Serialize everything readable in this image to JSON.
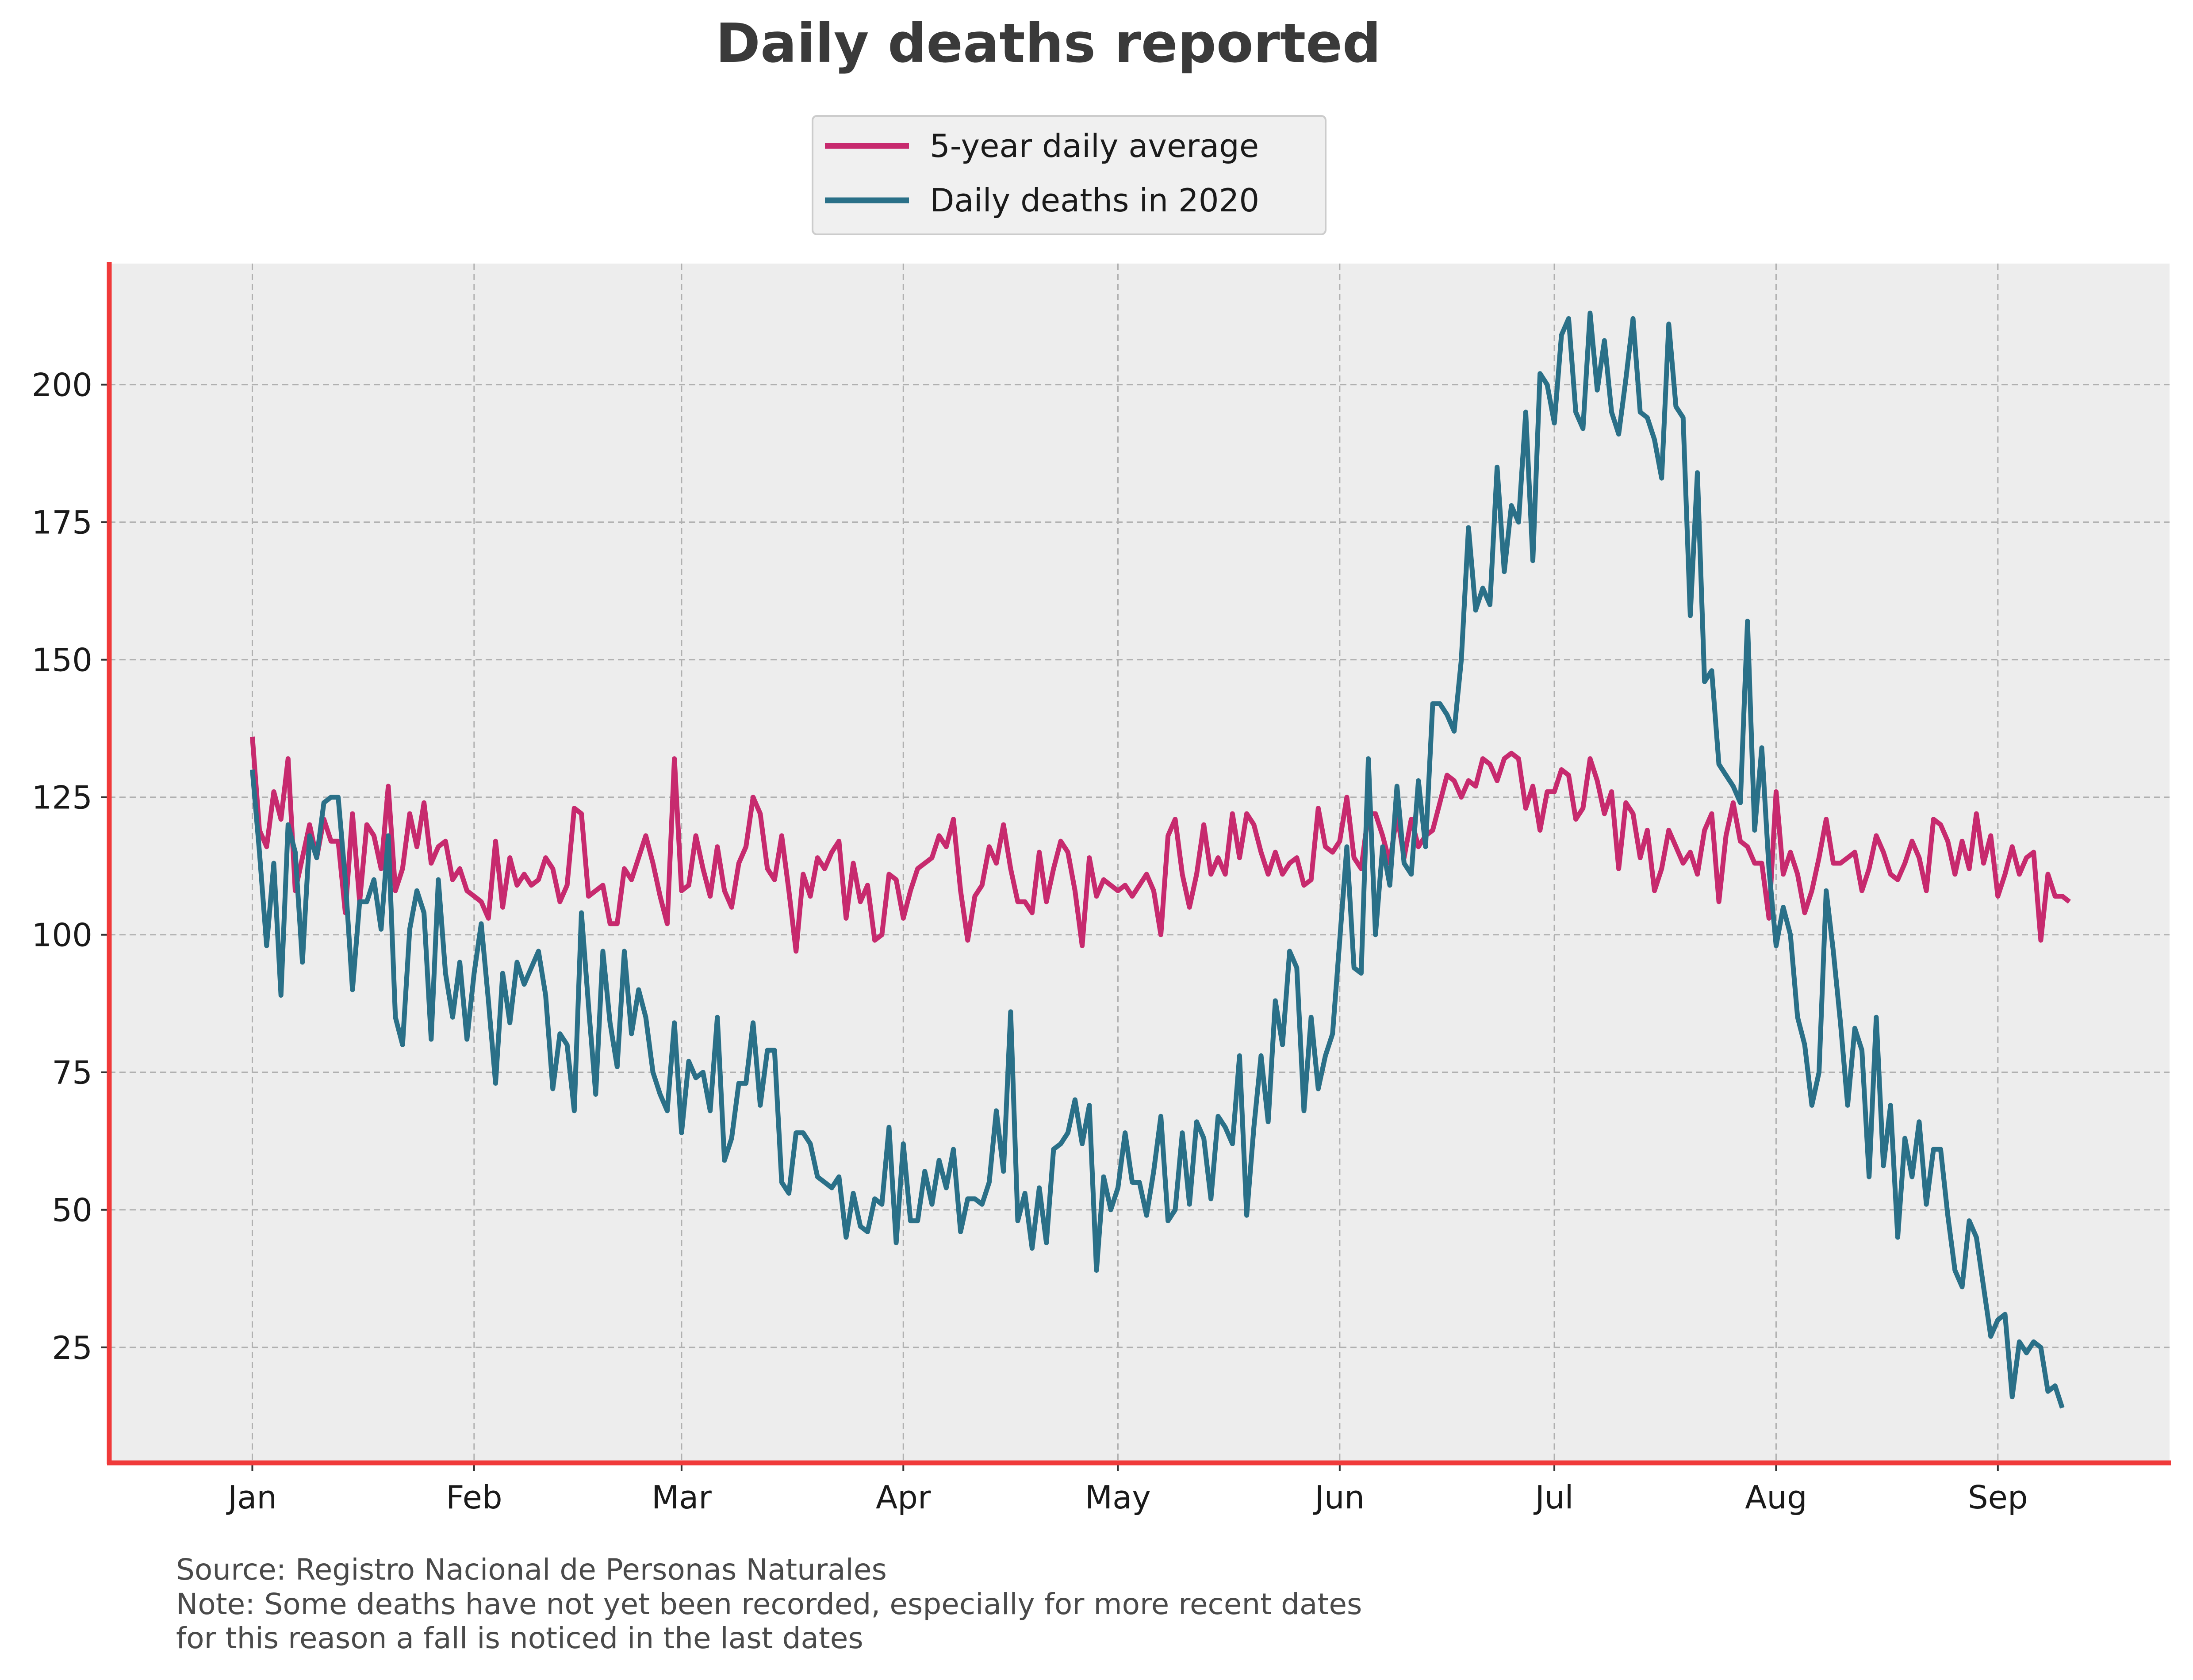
{
  "chart_data": {
    "type": "line",
    "title": "Daily deaths reported",
    "xlabel": "",
    "ylabel": "",
    "x_tick_labels": [
      "Jan",
      "Feb",
      "Mar",
      "Apr",
      "May",
      "Jun",
      "Jul",
      "Aug",
      "Sep"
    ],
    "y_ticks": [
      25,
      50,
      75,
      100,
      125,
      150,
      175,
      200
    ],
    "ylim": [
      4,
      222
    ],
    "xlim_day_of_year": [
      -20,
      268
    ],
    "grid": true,
    "legend_position": "top-center",
    "series": [
      {
        "name": "5-year daily average",
        "color": "#c72a6e",
        "x_start": "Jan 1",
        "values": [
          136,
          119,
          116,
          126,
          121,
          132,
          108,
          114,
          120,
          114,
          121,
          117,
          117,
          104,
          122,
          106,
          120,
          118,
          112,
          127,
          108,
          112,
          122,
          116,
          124,
          113,
          116,
          117,
          110,
          112,
          108,
          107,
          106,
          103,
          117,
          105,
          114,
          109,
          111,
          109,
          110,
          114,
          112,
          106,
          109,
          123,
          122,
          107,
          108,
          109,
          102,
          102,
          112,
          110,
          114,
          118,
          113,
          107,
          102,
          132,
          108,
          109,
          118,
          112,
          107,
          116,
          108,
          105,
          113,
          116,
          125,
          122,
          112,
          110,
          118,
          108,
          97,
          111,
          107,
          114,
          112,
          115,
          117,
          103,
          113,
          106,
          109,
          99,
          100,
          111,
          110,
          103,
          108,
          112,
          113,
          114,
          118,
          116,
          121,
          108,
          99,
          107,
          109,
          116,
          113,
          120,
          112,
          106,
          106,
          104,
          115,
          106,
          112,
          117,
          115,
          108,
          98,
          114,
          107,
          110,
          109,
          108,
          109,
          107,
          109,
          111,
          108,
          100,
          118,
          121,
          111,
          105,
          111,
          120,
          111,
          114,
          111,
          122,
          114,
          122,
          120,
          115,
          111,
          115,
          111,
          113,
          114,
          109,
          110,
          123,
          116,
          115,
          117,
          125,
          114,
          112,
          122,
          122,
          118,
          113,
          122,
          114,
          121,
          116,
          118,
          119,
          124,
          129,
          128,
          125,
          128,
          127,
          132,
          131,
          128,
          132,
          133,
          132,
          123,
          127,
          119,
          126,
          126,
          130,
          129,
          121,
          123,
          132,
          128,
          122,
          126,
          112,
          124,
          122,
          114,
          119,
          108,
          112,
          119,
          116,
          113,
          115,
          111,
          119,
          122,
          106,
          118,
          124,
          117,
          116,
          113,
          113,
          103,
          126,
          111,
          115,
          111,
          104,
          108,
          114,
          121,
          113,
          113,
          114,
          115,
          108,
          112,
          118,
          115,
          111,
          110,
          113,
          117,
          114,
          108,
          121,
          120,
          117,
          111,
          117,
          112,
          122,
          113,
          118,
          107,
          111,
          116,
          111,
          114,
          115,
          99,
          111,
          107,
          107,
          106
        ]
      },
      {
        "name": "Daily deaths in 2020",
        "color": "#2a7088",
        "x_start": "Jan 1",
        "values": [
          130,
          115,
          98,
          113,
          89,
          120,
          115,
          95,
          118,
          114,
          124,
          125,
          125,
          110,
          90,
          106,
          106,
          110,
          101,
          118,
          85,
          80,
          101,
          108,
          104,
          81,
          110,
          93,
          85,
          95,
          81,
          93,
          102,
          88,
          73,
          93,
          84,
          95,
          91,
          94,
          97,
          89,
          72,
          82,
          80,
          68,
          104,
          87,
          71,
          97,
          84,
          76,
          97,
          82,
          90,
          85,
          75,
          71,
          68,
          84,
          64,
          77,
          74,
          75,
          68,
          85,
          59,
          63,
          73,
          73,
          84,
          69,
          79,
          79,
          55,
          53,
          64,
          64,
          62,
          56,
          55,
          54,
          56,
          45,
          53,
          47,
          46,
          52,
          51,
          65,
          44,
          62,
          48,
          48,
          57,
          51,
          59,
          54,
          61,
          46,
          52,
          52,
          51,
          55,
          68,
          57,
          86,
          48,
          53,
          43,
          54,
          44,
          61,
          62,
          64,
          70,
          62,
          69,
          39,
          56,
          50,
          54,
          64,
          55,
          55,
          49,
          57,
          67,
          48,
          50,
          64,
          51,
          66,
          63,
          52,
          67,
          65,
          62,
          78,
          49,
          65,
          78,
          66,
          88,
          80,
          97,
          94,
          68,
          85,
          72,
          78,
          82,
          99,
          116,
          94,
          93,
          132,
          100,
          116,
          109,
          127,
          113,
          111,
          128,
          116,
          142,
          142,
          140,
          137,
          150,
          174,
          159,
          163,
          160,
          185,
          166,
          178,
          175,
          195,
          168,
          202,
          200,
          193,
          209,
          212,
          195,
          192,
          213,
          199,
          208,
          195,
          191,
          201,
          212,
          195,
          194,
          190,
          183,
          211,
          196,
          194,
          158,
          184,
          146,
          148,
          131,
          129,
          127,
          124,
          157,
          119,
          134,
          112,
          98,
          105,
          100,
          85,
          80,
          69,
          75,
          108,
          97,
          84,
          69,
          83,
          79,
          56,
          85,
          58,
          69,
          45,
          63,
          56,
          66,
          51,
          61,
          61,
          49,
          39,
          36,
          48,
          45,
          36,
          27,
          30,
          31,
          16,
          26,
          24,
          26,
          25,
          17,
          18,
          14
        ]
      }
    ],
    "footer": {
      "source": "Source: Registro Nacional de Personas Naturales",
      "note_line1": "Note: Some deaths have not yet been recorded, especially for more recent dates",
      "note_line2": "for this reason a fall is noticed in the last dates"
    }
  }
}
